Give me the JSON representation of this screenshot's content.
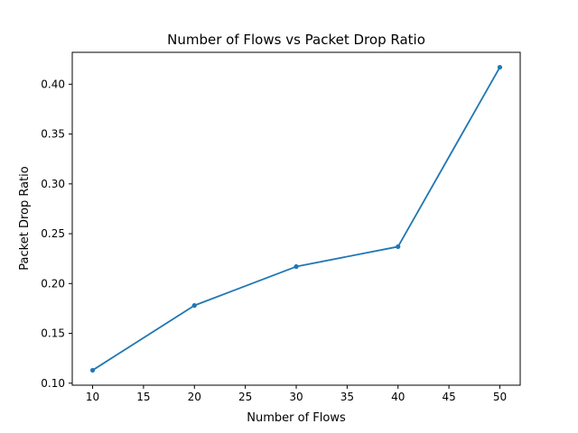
{
  "chart_data": {
    "type": "line",
    "title": "Number of Flows vs Packet Drop Ratio",
    "xlabel": "Number of Flows",
    "ylabel": "Packet Drop Ratio",
    "x": [
      10,
      20,
      30,
      40,
      50
    ],
    "series": [
      {
        "values": [
          0.113,
          0.178,
          0.217,
          0.237,
          0.417
        ],
        "color": "#1f77b4",
        "marker": "point"
      }
    ],
    "xlim": [
      8,
      52
    ],
    "ylim": [
      0.098,
      0.432
    ],
    "xticks": [
      10,
      15,
      20,
      25,
      30,
      35,
      40,
      45,
      50
    ],
    "yticks": [
      0.1,
      0.15,
      0.2,
      0.25,
      0.3,
      0.35,
      0.4
    ],
    "xtick_labels": [
      "10",
      "15",
      "20",
      "25",
      "30",
      "35",
      "40",
      "45",
      "50"
    ],
    "ytick_labels": [
      "0.10",
      "0.15",
      "0.20",
      "0.25",
      "0.30",
      "0.35",
      "0.40"
    ],
    "grid": false,
    "legend": "none"
  }
}
